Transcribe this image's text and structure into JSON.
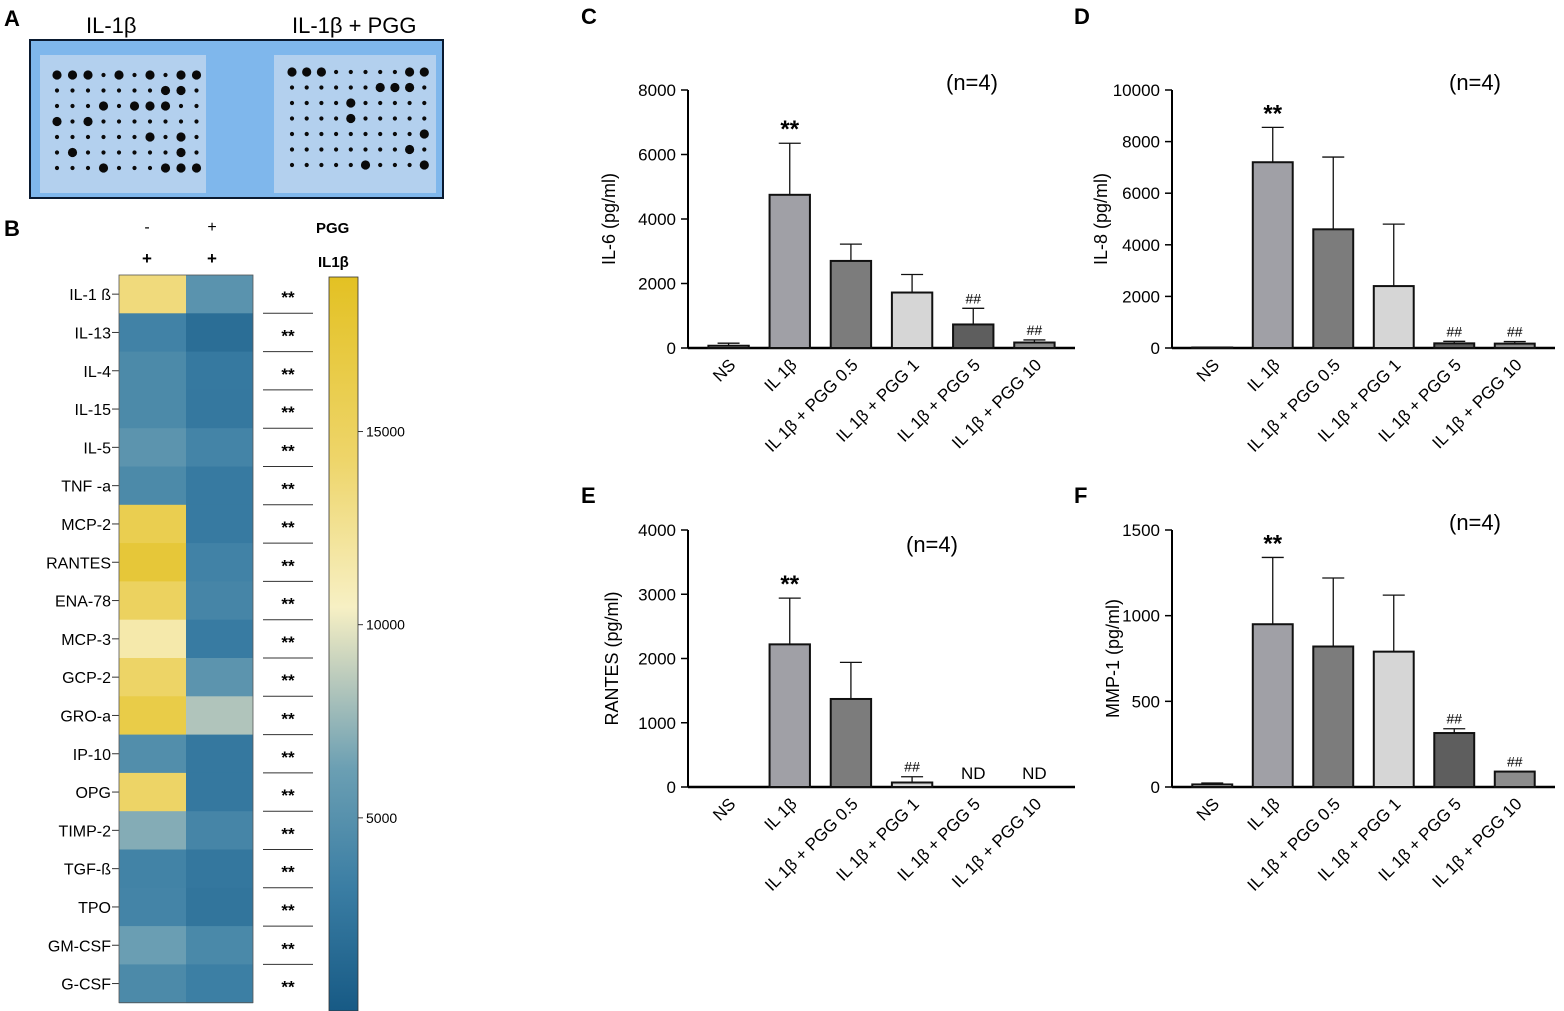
{
  "panel_a": {
    "letter": "A",
    "label_left": "IL-1β",
    "label_right": "IL-1β + PGG",
    "blot_colors": {
      "background": "#7fb7ec",
      "membrane": "#b9d3ec",
      "dot": "#0a0a0a",
      "border": "#0a1a30"
    }
  },
  "panel_b": {
    "letter": "B",
    "header_top": {
      "minus": "-",
      "plus": "+",
      "label": "PGG"
    },
    "header_bottom": {
      "plus1": "+",
      "plus2": "+",
      "label": "IL1β"
    },
    "significance": "**",
    "colorbar": {
      "min": 0,
      "max": 19000,
      "ticks": [
        5000,
        10000,
        15000
      ],
      "tick_labels": [
        "5000",
        "10000",
        "15000"
      ],
      "stops": [
        "#175a85",
        "#3b7ea4",
        "#6b9fb3",
        "#b8c9bc",
        "#f7f0c4",
        "#eed56a",
        "#e3c123"
      ]
    }
  },
  "chart_data": [
    {
      "type": "heatmap",
      "title": "",
      "columns": [
        "PGG - / IL1β +",
        "PGG + / IL1β +"
      ],
      "rows": [
        "IL-1 ß",
        "IL-13",
        "IL-4",
        "IL-15",
        "IL-5",
        "TNF -a",
        "MCP-2",
        "RANTES",
        "ENA-78",
        "MCP-3",
        "GCP-2",
        "GRO-a",
        "IP-10",
        "OPG",
        "TIMP-2",
        "TGF-ß",
        "TPO",
        "GM-CSF",
        "G-CSF"
      ],
      "values": [
        [
          13500,
          5200
        ],
        [
          3600,
          1800
        ],
        [
          4300,
          2800
        ],
        [
          4300,
          2700
        ],
        [
          5300,
          3800
        ],
        [
          4300,
          2900
        ],
        [
          16000,
          2900
        ],
        [
          17500,
          3600
        ],
        [
          15000,
          3900
        ],
        [
          11500,
          3000
        ],
        [
          14500,
          5300
        ],
        [
          16500,
          8300
        ],
        [
          4700,
          2700
        ],
        [
          14500,
          2700
        ],
        [
          7000,
          3900
        ],
        [
          3700,
          2600
        ],
        [
          3800,
          2400
        ],
        [
          6200,
          4200
        ],
        [
          4300,
          3300
        ]
      ],
      "significance": [
        "**",
        "**",
        "**",
        "**",
        "**",
        "**",
        "**",
        "**",
        "**",
        "**",
        "**",
        "**",
        "**",
        "**",
        "**",
        "**",
        "**",
        "**",
        "**"
      ]
    },
    {
      "panel": "C",
      "type": "bar",
      "annotation": "(n=4)",
      "ylabel": "IL-6 (pg/ml)",
      "ylim": [
        0,
        8000
      ],
      "yticks": [
        0,
        2000,
        4000,
        6000,
        8000
      ],
      "ytick_labels": [
        "0",
        "2000",
        "4000",
        "6000",
        "8000"
      ],
      "categories": [
        "NS",
        "IL 1β",
        "IL 1β + PGG 0.5",
        "IL 1β + PGG 1",
        "IL 1β + PGG 5",
        "IL 1β + PGG 10"
      ],
      "values": [
        70,
        4750,
        2700,
        1720,
        730,
        170
      ],
      "errors": [
        80,
        1600,
        520,
        560,
        500,
        80
      ],
      "labels": [
        "",
        "**",
        "",
        "",
        "##",
        "##"
      ]
    },
    {
      "panel": "D",
      "type": "bar",
      "annotation": "(n=4)",
      "ylabel": "IL-8 (pg/ml)",
      "ylim": [
        0,
        10000
      ],
      "yticks": [
        0,
        2000,
        4000,
        6000,
        8000,
        10000
      ],
      "ytick_labels": [
        "0",
        "2000",
        "4000",
        "6000",
        "8000",
        "10000"
      ],
      "categories": [
        "NS",
        "IL 1β",
        "IL 1β + PGG 0.5",
        "IL 1β + PGG 1",
        "IL 1β + PGG 5",
        "IL 1β + PGG 10"
      ],
      "values": [
        20,
        7200,
        4600,
        2400,
        180,
        170
      ],
      "errors": [
        0,
        1350,
        2800,
        2400,
        80,
        80
      ],
      "labels": [
        "",
        "**",
        "",
        "",
        "##",
        "##"
      ]
    },
    {
      "panel": "E",
      "type": "bar",
      "annotation": "(n=4)",
      "ylabel": "RANTES (pg/ml)",
      "ylim": [
        0,
        4000
      ],
      "yticks": [
        0,
        1000,
        2000,
        3000,
        4000
      ],
      "ytick_labels": [
        "0",
        "1000",
        "2000",
        "3000",
        "4000"
      ],
      "categories": [
        "NS",
        "IL 1β",
        "IL 1β + PGG 0.5",
        "IL 1β + PGG 1",
        "IL 1β + PGG 5",
        "IL 1β + PGG 10"
      ],
      "values": [
        0,
        2220,
        1370,
        70,
        0,
        0
      ],
      "errors": [
        0,
        720,
        570,
        90,
        0,
        0
      ],
      "labels": [
        "",
        "**",
        "",
        "##",
        "ND",
        "ND"
      ]
    },
    {
      "panel": "F",
      "type": "bar",
      "annotation": "(n=4)",
      "ylabel": "MMP-1 (pg/ml)",
      "ylim": [
        0,
        1500
      ],
      "yticks": [
        0,
        500,
        1000,
        1500
      ],
      "ytick_labels": [
        "0",
        "500",
        "1000",
        "1500"
      ],
      "categories": [
        "NS",
        "IL 1β",
        "IL 1β + PGG 0.5",
        "IL 1β + PGG 1",
        "IL 1β + PGG 5",
        "IL 1β + PGG 10"
      ],
      "values": [
        15,
        950,
        820,
        790,
        315,
        90
      ],
      "errors": [
        8,
        390,
        400,
        330,
        25,
        0
      ],
      "labels": [
        "",
        "**",
        "",
        "",
        "##",
        "##"
      ]
    }
  ],
  "bar_colors": [
    "#cfcfcf",
    "#a0a0a6",
    "#7c7c7c",
    "#d6d6d6",
    "#5e5e5e",
    "#8c8c8c"
  ]
}
